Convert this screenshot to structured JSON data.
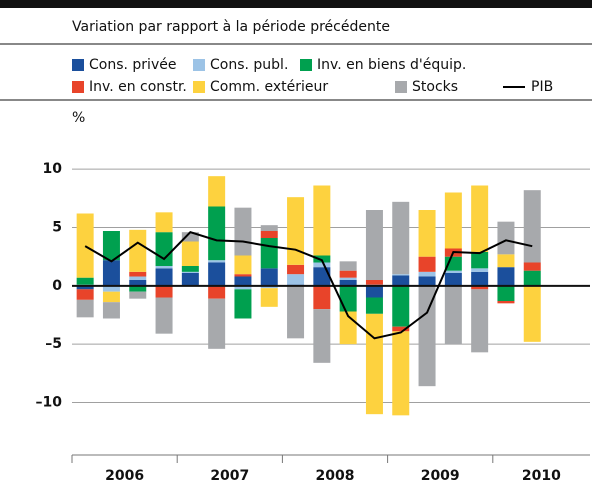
{
  "chart_data": {
    "type": "stacked-bar",
    "subtitle": "Variation par rapport à la période précédente",
    "y_label": "%",
    "categories": [
      "2006",
      null,
      null,
      null,
      "2007",
      null,
      null,
      null,
      "2008",
      null,
      null,
      null,
      "2009",
      null,
      null,
      null,
      "2010",
      null
    ],
    "series": [
      {
        "name": "Cons. privée",
        "color": "#1b4f9c",
        "values": [
          -0.3,
          2.2,
          0.5,
          1.5,
          1.1,
          2.0,
          0.8,
          1.5,
          0.1,
          1.6,
          0.5,
          -1.0,
          0.9,
          0.8,
          1.1,
          1.2,
          1.6,
          0
        ]
      },
      {
        "name": "Cons. publ.",
        "color": "#9cc3e6",
        "values": [
          0.1,
          -0.5,
          0.3,
          0.2,
          0.1,
          0.2,
          -0.3,
          -0.2,
          0.9,
          0.4,
          0.2,
          0.1,
          0.1,
          0.4,
          0.2,
          0.3,
          0,
          0
        ]
      },
      {
        "name": "Inv. en biens d'équip.",
        "color": "#00a04f",
        "values": [
          0.6,
          2.5,
          -0.5,
          2.9,
          0.5,
          4.6,
          -2.5,
          2.6,
          0,
          0.6,
          -2.2,
          -1.4,
          -3.5,
          0,
          1.2,
          1.4,
          -1.3,
          1.3
        ]
      },
      {
        "name": "Inv. en constr.",
        "color": "#e8442a",
        "values": [
          -0.9,
          0,
          0.4,
          -1.0,
          0,
          -1.1,
          0.2,
          0.6,
          0.8,
          -2.0,
          0.6,
          0.4,
          -0.4,
          1.3,
          0.7,
          -0.3,
          -0.2,
          0.7
        ]
      },
      {
        "name": "Comm. extérieur",
        "color": "#fdd23f",
        "values": [
          5.5,
          -0.9,
          3.6,
          1.7,
          2.1,
          2.6,
          1.6,
          -1.6,
          5.8,
          6.0,
          -2.8,
          -8.6,
          -7.2,
          4.0,
          4.8,
          5.7,
          1.1,
          -4.8
        ]
      },
      {
        "name": "Stocks",
        "color": "#a7a9ac",
        "values": [
          -1.5,
          -1.4,
          -0.6,
          -3.1,
          0.8,
          -4.3,
          4.1,
          0.5,
          -4.5,
          -4.6,
          0.8,
          6.0,
          6.2,
          -8.6,
          -5.0,
          -5.4,
          2.8,
          6.2
        ]
      }
    ],
    "line": {
      "name": "PIB",
      "color": "#000000",
      "values": [
        3.4,
        2.1,
        3.7,
        2.3,
        4.6,
        3.9,
        3.8,
        3.4,
        3.1,
        2.2,
        -2.6,
        -4.5,
        -4.0,
        -2.3,
        2.9,
        2.8,
        3.9,
        3.4
      ]
    },
    "ylim": [
      -14.5,
      12.5
    ],
    "yticks": [
      {
        "value": -10,
        "label": "–10"
      },
      {
        "value": -5,
        "label": "–5"
      },
      0,
      5,
      10
    ],
    "grid": true
  }
}
